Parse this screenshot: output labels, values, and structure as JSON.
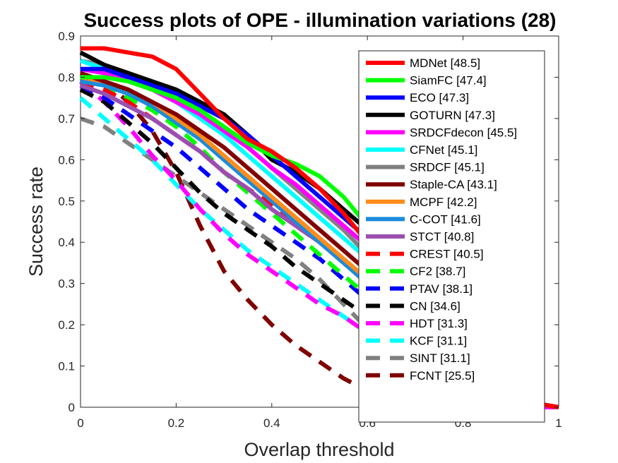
{
  "chart_data": {
    "type": "line",
    "title": "Success plots of OPE - illumination variations (28)",
    "xlabel": "Overlap threshold",
    "ylabel": "Success rate",
    "xlim": [
      0,
      1
    ],
    "ylim": [
      0,
      0.9
    ],
    "xticks": [
      0,
      0.2,
      0.4,
      0.6,
      0.8,
      1
    ],
    "xtick_labels": [
      "0",
      "0.2",
      "0.4",
      "0.6",
      "0.8",
      "1"
    ],
    "yticks": [
      0,
      0.1,
      0.2,
      0.3,
      0.4,
      0.5,
      0.6,
      0.7,
      0.8,
      0.9
    ],
    "ytick_labels": [
      "0",
      "0.1",
      "0.2",
      "0.3",
      "0.4",
      "0.5",
      "0.6",
      "0.7",
      "0.8",
      "0.9"
    ],
    "grid": false,
    "legend_position": "top-right",
    "x": [
      0,
      0.05,
      0.1,
      0.15,
      0.2,
      0.25,
      0.3,
      0.35,
      0.4,
      0.45,
      0.5,
      0.55,
      0.6,
      0.65,
      0.7,
      0.75,
      0.8,
      0.85,
      0.9,
      0.95,
      1
    ],
    "series": [
      {
        "name": "MDNet [48.5]",
        "color": "#ff0000",
        "dash": "solid",
        "values": [
          0.87,
          0.87,
          0.86,
          0.85,
          0.82,
          0.76,
          0.7,
          0.65,
          0.62,
          0.58,
          0.53,
          0.47,
          0.4,
          0.33,
          0.25,
          0.17,
          0.1,
          0.05,
          0.02,
          0.01,
          0.0
        ]
      },
      {
        "name": "SiamFC [47.4]",
        "color": "#00ff00",
        "dash": "solid",
        "values": [
          0.8,
          0.8,
          0.79,
          0.77,
          0.75,
          0.72,
          0.68,
          0.64,
          0.61,
          0.59,
          0.56,
          0.51,
          0.44,
          0.36,
          0.28,
          0.19,
          0.11,
          0.05,
          0.02,
          0.01,
          0.0
        ]
      },
      {
        "name": "ECO [47.3]",
        "color": "#0000ff",
        "dash": "solid",
        "values": [
          0.82,
          0.82,
          0.8,
          0.78,
          0.76,
          0.73,
          0.7,
          0.66,
          0.61,
          0.56,
          0.51,
          0.46,
          0.41,
          0.35,
          0.27,
          0.18,
          0.1,
          0.05,
          0.02,
          0.01,
          0.0
        ]
      },
      {
        "name": "GOTURN [47.3]",
        "color": "#000000",
        "dash": "solid",
        "values": [
          0.86,
          0.83,
          0.81,
          0.79,
          0.77,
          0.74,
          0.71,
          0.66,
          0.6,
          0.57,
          0.53,
          0.48,
          0.43,
          0.37,
          0.29,
          0.2,
          0.12,
          0.06,
          0.03,
          0.01,
          0.0
        ]
      },
      {
        "name": "SRDCFdecon [45.5]",
        "color": "#ff00ff",
        "dash": "solid",
        "values": [
          0.82,
          0.81,
          0.79,
          0.77,
          0.74,
          0.71,
          0.67,
          0.63,
          0.58,
          0.54,
          0.49,
          0.44,
          0.39,
          0.33,
          0.26,
          0.18,
          0.11,
          0.05,
          0.02,
          0.01,
          0.0
        ]
      },
      {
        "name": "CFNet [45.1]",
        "color": "#00ffff",
        "dash": "solid",
        "values": [
          0.84,
          0.82,
          0.8,
          0.77,
          0.74,
          0.7,
          0.66,
          0.61,
          0.56,
          0.51,
          0.46,
          0.41,
          0.36,
          0.3,
          0.24,
          0.17,
          0.1,
          0.05,
          0.02,
          0.01,
          0.0
        ]
      },
      {
        "name": "SRDCF [45.1]",
        "color": "#808080",
        "dash": "solid",
        "values": [
          0.84,
          0.83,
          0.81,
          0.78,
          0.75,
          0.72,
          0.68,
          0.63,
          0.58,
          0.53,
          0.48,
          0.43,
          0.37,
          0.31,
          0.25,
          0.17,
          0.1,
          0.05,
          0.02,
          0.01,
          0.0
        ]
      },
      {
        "name": "Staple-CA [43.1]",
        "color": "#800000",
        "dash": "solid",
        "values": [
          0.81,
          0.79,
          0.77,
          0.74,
          0.71,
          0.67,
          0.63,
          0.58,
          0.53,
          0.48,
          0.43,
          0.38,
          0.33,
          0.27,
          0.21,
          0.15,
          0.09,
          0.04,
          0.02,
          0.01,
          0.0
        ]
      },
      {
        "name": "MCPF [42.2]",
        "color": "#ff8c1a",
        "dash": "solid",
        "values": [
          0.8,
          0.79,
          0.77,
          0.74,
          0.7,
          0.66,
          0.61,
          0.56,
          0.51,
          0.46,
          0.41,
          0.36,
          0.31,
          0.26,
          0.2,
          0.14,
          0.08,
          0.04,
          0.02,
          0.01,
          0.0
        ]
      },
      {
        "name": "C-COT [41.6]",
        "color": "#1a8cdd",
        "dash": "solid",
        "values": [
          0.79,
          0.78,
          0.76,
          0.73,
          0.69,
          0.65,
          0.6,
          0.55,
          0.5,
          0.45,
          0.4,
          0.35,
          0.3,
          0.25,
          0.19,
          0.13,
          0.08,
          0.04,
          0.02,
          0.01,
          0.0
        ]
      },
      {
        "name": "STCT [40.8]",
        "color": "#9b4fb0",
        "dash": "solid",
        "values": [
          0.78,
          0.76,
          0.73,
          0.7,
          0.66,
          0.62,
          0.57,
          0.53,
          0.48,
          0.44,
          0.4,
          0.35,
          0.3,
          0.25,
          0.19,
          0.13,
          0.08,
          0.04,
          0.02,
          0.01,
          0.0
        ]
      },
      {
        "name": "CREST [40.5]",
        "color": "#ff0000",
        "dash": "dashed",
        "values": [
          0.79,
          0.77,
          0.74,
          0.7,
          0.66,
          0.62,
          0.57,
          0.53,
          0.49,
          0.44,
          0.4,
          0.35,
          0.3,
          0.25,
          0.19,
          0.13,
          0.08,
          0.04,
          0.02,
          0.01,
          0.0
        ]
      },
      {
        "name": "CF2 [38.7]",
        "color": "#00ff00",
        "dash": "dashed",
        "values": [
          0.8,
          0.78,
          0.75,
          0.72,
          0.68,
          0.63,
          0.57,
          0.52,
          0.47,
          0.42,
          0.37,
          0.32,
          0.27,
          0.22,
          0.16,
          0.11,
          0.07,
          0.03,
          0.01,
          0.01,
          0.0
        ]
      },
      {
        "name": "PTAV [38.1]",
        "color": "#0000ff",
        "dash": "dashed",
        "values": [
          0.78,
          0.75,
          0.71,
          0.67,
          0.63,
          0.58,
          0.53,
          0.48,
          0.44,
          0.4,
          0.36,
          0.31,
          0.26,
          0.21,
          0.16,
          0.11,
          0.07,
          0.03,
          0.01,
          0.01,
          0.0
        ]
      },
      {
        "name": "CN [34.6]",
        "color": "#000000",
        "dash": "dashed",
        "values": [
          0.77,
          0.74,
          0.69,
          0.64,
          0.58,
          0.52,
          0.47,
          0.43,
          0.39,
          0.34,
          0.3,
          0.26,
          0.22,
          0.18,
          0.14,
          0.1,
          0.06,
          0.03,
          0.01,
          0.01,
          0.0
        ]
      },
      {
        "name": "HDT [31.3]",
        "color": "#ff00ff",
        "dash": "dashed",
        "values": [
          0.79,
          0.74,
          0.68,
          0.61,
          0.55,
          0.48,
          0.42,
          0.37,
          0.33,
          0.29,
          0.25,
          0.22,
          0.18,
          0.15,
          0.11,
          0.08,
          0.05,
          0.02,
          0.01,
          0.0,
          0.0
        ]
      },
      {
        "name": "KCF [31.1]",
        "color": "#00ffff",
        "dash": "dashed",
        "values": [
          0.75,
          0.7,
          0.65,
          0.6,
          0.54,
          0.48,
          0.43,
          0.38,
          0.34,
          0.3,
          0.26,
          0.22,
          0.18,
          0.14,
          0.1,
          0.07,
          0.04,
          0.02,
          0.01,
          0.0,
          0.0
        ]
      },
      {
        "name": "SINT [31.1]",
        "color": "#808080",
        "dash": "dashed",
        "values": [
          0.7,
          0.68,
          0.64,
          0.6,
          0.56,
          0.52,
          0.48,
          0.44,
          0.4,
          0.36,
          0.31,
          0.25,
          0.19,
          0.13,
          0.07,
          0.03,
          0.02,
          0.01,
          0.01,
          0.01,
          0.0
        ]
      },
      {
        "name": "FCNT [25.5]",
        "color": "#800000",
        "dash": "dashed",
        "values": [
          0.81,
          0.79,
          0.74,
          0.67,
          0.57,
          0.44,
          0.33,
          0.26,
          0.2,
          0.15,
          0.11,
          0.07,
          0.04,
          0.02,
          0.01,
          0.01,
          0.0,
          0.0,
          0.0,
          0.0,
          0.0
        ]
      }
    ]
  }
}
